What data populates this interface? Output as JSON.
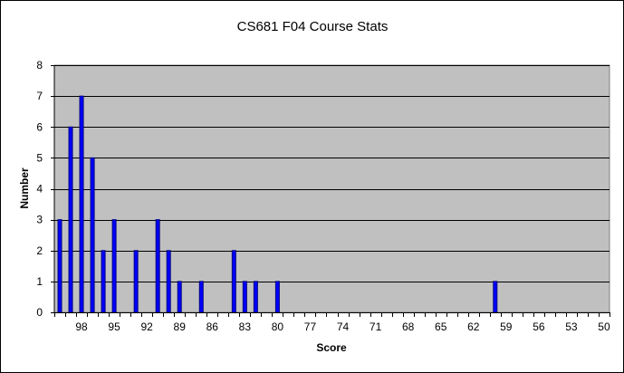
{
  "chart_data": {
    "type": "bar",
    "title": "CS681 F04 Course Stats",
    "xlabel": "Score",
    "ylabel": "Number",
    "ylim": [
      0,
      8
    ],
    "yticks": [
      0,
      1,
      2,
      3,
      4,
      5,
      6,
      7,
      8
    ],
    "x_tick_labels": [
      "98",
      "95",
      "92",
      "89",
      "86",
      "83",
      "80",
      "77",
      "74",
      "71",
      "68",
      "65",
      "62",
      "59",
      "56",
      "53",
      "50"
    ],
    "categories": [
      100,
      99,
      98,
      97,
      96,
      95,
      94,
      93,
      92,
      91,
      90,
      89,
      88,
      87,
      86,
      85,
      84,
      83,
      82,
      81,
      80,
      79,
      78,
      77,
      76,
      75,
      74,
      73,
      72,
      71,
      70,
      69,
      68,
      67,
      66,
      65,
      64,
      63,
      62,
      61,
      60,
      59,
      58,
      57,
      56,
      55,
      54,
      53,
      52,
      51,
      50
    ],
    "values": [
      3,
      6,
      7,
      5,
      2,
      3,
      0,
      2,
      0,
      3,
      2,
      1,
      0,
      1,
      0,
      0,
      2,
      1,
      1,
      0,
      1,
      0,
      0,
      0,
      0,
      0,
      0,
      0,
      0,
      0,
      0,
      0,
      0,
      0,
      0,
      0,
      0,
      0,
      0,
      0,
      1,
      0,
      0,
      0,
      0,
      0,
      0,
      0,
      0,
      0,
      0
    ],
    "grid": true,
    "legend": "none",
    "colors": {
      "plot_background": "#c0c0c0",
      "bar_fill": "#0000ff",
      "bar_stroke": "#000080",
      "gridline": "#000000"
    }
  }
}
